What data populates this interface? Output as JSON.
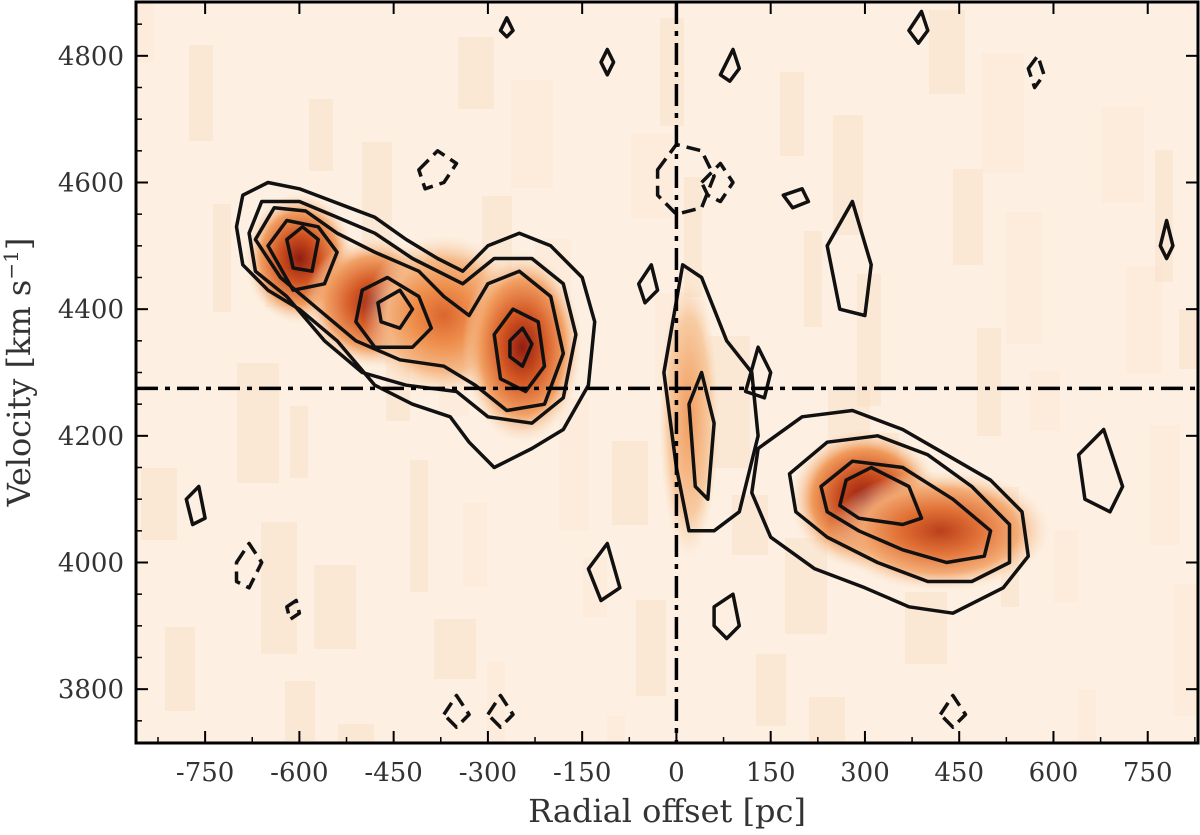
{
  "chart_data": {
    "type": "heatmap",
    "title": "",
    "xlabel": "Radial offset [pc]",
    "ylabel": "Velocity [km s",
    "ylabel_sup": "−1",
    "ylabel_close": "]",
    "xlim": [
      -860,
      830
    ],
    "ylim": [
      3715,
      4885
    ],
    "x_ticks": [
      -750,
      -600,
      -450,
      -300,
      -150,
      0,
      150,
      300,
      450,
      600,
      750
    ],
    "y_ticks": [
      3800,
      4000,
      4200,
      4400,
      4600,
      4800
    ],
    "reference_lines": {
      "x": 0,
      "y": 4275,
      "style": "dash-dot"
    },
    "colormap": [
      "#fdf3e9",
      "#f7c79a",
      "#ee8a45",
      "#cf4a16",
      "#8c1206"
    ],
    "emission_peaks": [
      {
        "x": -600,
        "y": 4480,
        "intensity": 0.92,
        "sx": 55,
        "sy": 65
      },
      {
        "x": -480,
        "y": 4410,
        "intensity": 0.85,
        "sx": 70,
        "sy": 65
      },
      {
        "x": -370,
        "y": 4390,
        "intensity": 0.55,
        "sx": 80,
        "sy": 80
      },
      {
        "x": -245,
        "y": 4340,
        "intensity": 0.88,
        "sx": 60,
        "sy": 95
      },
      {
        "x": 20,
        "y": 4230,
        "intensity": 0.32,
        "sx": 30,
        "sy": 140
      },
      {
        "x": 300,
        "y": 4100,
        "intensity": 0.95,
        "sx": 75,
        "sy": 70
      },
      {
        "x": 420,
        "y": 4050,
        "intensity": 0.72,
        "sx": 110,
        "sy": 60
      }
    ],
    "contours": {
      "positive": [
        [
          [
            -700,
            4530
          ],
          [
            -690,
            4580
          ],
          [
            -650,
            4600
          ],
          [
            -600,
            4590
          ],
          [
            -560,
            4575
          ],
          [
            -520,
            4560
          ],
          [
            -480,
            4545
          ],
          [
            -430,
            4510
          ],
          [
            -380,
            4480
          ],
          [
            -340,
            4460
          ],
          [
            -300,
            4500
          ],
          [
            -250,
            4520
          ],
          [
            -200,
            4500
          ],
          [
            -150,
            4450
          ],
          [
            -130,
            4380
          ],
          [
            -140,
            4280
          ],
          [
            -180,
            4210
          ],
          [
            -230,
            4180
          ],
          [
            -290,
            4150
          ],
          [
            -330,
            4190
          ],
          [
            -360,
            4230
          ],
          [
            -420,
            4250
          ],
          [
            -480,
            4280
          ],
          [
            -540,
            4350
          ],
          [
            -600,
            4400
          ],
          [
            -650,
            4430
          ],
          [
            -690,
            4470
          ]
        ],
        [
          [
            -680,
            4520
          ],
          [
            -660,
            4570
          ],
          [
            -600,
            4570
          ],
          [
            -540,
            4545
          ],
          [
            -480,
            4520
          ],
          [
            -420,
            4480
          ],
          [
            -340,
            4440
          ],
          [
            -290,
            4480
          ],
          [
            -230,
            4480
          ],
          [
            -180,
            4440
          ],
          [
            -160,
            4360
          ],
          [
            -180,
            4260
          ],
          [
            -230,
            4220
          ],
          [
            -300,
            4230
          ],
          [
            -350,
            4270
          ],
          [
            -430,
            4280
          ],
          [
            -500,
            4300
          ],
          [
            -560,
            4350
          ],
          [
            -620,
            4420
          ],
          [
            -670,
            4460
          ]
        ],
        [
          [
            -670,
            4510
          ],
          [
            -640,
            4560
          ],
          [
            -590,
            4555
          ],
          [
            -540,
            4520
          ],
          [
            -480,
            4490
          ],
          [
            -410,
            4460
          ],
          [
            -370,
            4420
          ],
          [
            -330,
            4390
          ],
          [
            -300,
            4440
          ],
          [
            -250,
            4460
          ],
          [
            -200,
            4420
          ],
          [
            -180,
            4330
          ],
          [
            -210,
            4250
          ],
          [
            -270,
            4240
          ],
          [
            -320,
            4280
          ],
          [
            -370,
            4310
          ],
          [
            -440,
            4320
          ],
          [
            -510,
            4350
          ],
          [
            -570,
            4400
          ],
          [
            -630,
            4450
          ]
        ],
        [
          [
            -650,
            4500
          ],
          [
            -620,
            4540
          ],
          [
            -570,
            4530
          ],
          [
            -540,
            4490
          ],
          [
            -560,
            4440
          ],
          [
            -610,
            4430
          ]
        ],
        [
          [
            -500,
            4430
          ],
          [
            -460,
            4450
          ],
          [
            -410,
            4420
          ],
          [
            -390,
            4370
          ],
          [
            -420,
            4340
          ],
          [
            -480,
            4340
          ],
          [
            -510,
            4380
          ]
        ],
        [
          [
            -290,
            4360
          ],
          [
            -260,
            4400
          ],
          [
            -220,
            4380
          ],
          [
            -210,
            4310
          ],
          [
            -240,
            4270
          ],
          [
            -280,
            4290
          ]
        ],
        [
          [
            -620,
            4510
          ],
          [
            -595,
            4530
          ],
          [
            -570,
            4510
          ],
          [
            -580,
            4460
          ],
          [
            -610,
            4465
          ]
        ],
        [
          [
            -475,
            4410
          ],
          [
            -440,
            4430
          ],
          [
            -420,
            4400
          ],
          [
            -440,
            4370
          ],
          [
            -470,
            4380
          ]
        ],
        [
          [
            -265,
            4350
          ],
          [
            -245,
            4370
          ],
          [
            -230,
            4345
          ],
          [
            -245,
            4310
          ],
          [
            -265,
            4325
          ]
        ],
        [
          [
            -20,
            4300
          ],
          [
            10,
            4470
          ],
          [
            40,
            4450
          ],
          [
            80,
            4350
          ],
          [
            120,
            4300
          ],
          [
            130,
            4200
          ],
          [
            100,
            4080
          ],
          [
            60,
            4050
          ],
          [
            20,
            4050
          ],
          [
            0,
            4150
          ]
        ],
        [
          [
            20,
            4250
          ],
          [
            40,
            4300
          ],
          [
            60,
            4220
          ],
          [
            50,
            4100
          ],
          [
            30,
            4120
          ]
        ],
        [
          [
            130,
            4180
          ],
          [
            200,
            4230
          ],
          [
            280,
            4240
          ],
          [
            360,
            4210
          ],
          [
            430,
            4170
          ],
          [
            500,
            4130
          ],
          [
            550,
            4080
          ],
          [
            560,
            4010
          ],
          [
            520,
            3960
          ],
          [
            440,
            3920
          ],
          [
            370,
            3930
          ],
          [
            300,
            3960
          ],
          [
            220,
            3990
          ],
          [
            150,
            4040
          ],
          [
            120,
            4110
          ]
        ],
        [
          [
            180,
            4140
          ],
          [
            240,
            4190
          ],
          [
            320,
            4200
          ],
          [
            400,
            4170
          ],
          [
            470,
            4120
          ],
          [
            530,
            4060
          ],
          [
            530,
            4000
          ],
          [
            470,
            3970
          ],
          [
            400,
            3970
          ],
          [
            320,
            4000
          ],
          [
            240,
            4040
          ],
          [
            190,
            4080
          ]
        ],
        [
          [
            230,
            4120
          ],
          [
            280,
            4160
          ],
          [
            360,
            4150
          ],
          [
            440,
            4100
          ],
          [
            500,
            4050
          ],
          [
            490,
            4010
          ],
          [
            430,
            4000
          ],
          [
            360,
            4020
          ],
          [
            290,
            4050
          ],
          [
            240,
            4080
          ]
        ],
        [
          [
            270,
            4130
          ],
          [
            310,
            4150
          ],
          [
            370,
            4120
          ],
          [
            390,
            4070
          ],
          [
            360,
            4060
          ],
          [
            290,
            4070
          ],
          [
            260,
            4090
          ]
        ],
        [
          [
            -780,
            4100
          ],
          [
            -760,
            4120
          ],
          [
            -750,
            4070
          ],
          [
            -770,
            4060
          ]
        ],
        [
          [
            -140,
            3990
          ],
          [
            -110,
            4030
          ],
          [
            -90,
            3960
          ],
          [
            -120,
            3940
          ]
        ],
        [
          [
            640,
            4170
          ],
          [
            680,
            4210
          ],
          [
            710,
            4120
          ],
          [
            690,
            4080
          ],
          [
            650,
            4100
          ]
        ],
        [
          [
            240,
            4500
          ],
          [
            280,
            4570
          ],
          [
            310,
            4470
          ],
          [
            300,
            4390
          ],
          [
            260,
            4400
          ]
        ],
        [
          [
            770,
            4500
          ],
          [
            780,
            4540
          ],
          [
            790,
            4500
          ],
          [
            780,
            4480
          ]
        ],
        [
          [
            60,
            3930
          ],
          [
            90,
            3950
          ],
          [
            100,
            3900
          ],
          [
            80,
            3880
          ],
          [
            60,
            3900
          ]
        ],
        [
          [
            -60,
            4440
          ],
          [
            -40,
            4470
          ],
          [
            -30,
            4430
          ],
          [
            -50,
            4410
          ]
        ],
        [
          [
            -120,
            4790
          ],
          [
            -110,
            4810
          ],
          [
            -100,
            4790
          ],
          [
            -110,
            4770
          ]
        ],
        [
          [
            170,
            4580
          ],
          [
            200,
            4590
          ],
          [
            210,
            4570
          ],
          [
            185,
            4560
          ]
        ],
        [
          [
            70,
            4770
          ],
          [
            90,
            4810
          ],
          [
            100,
            4780
          ],
          [
            85,
            4760
          ]
        ],
        [
          [
            110,
            4270
          ],
          [
            130,
            4340
          ],
          [
            150,
            4300
          ],
          [
            140,
            4260
          ]
        ],
        [
          [
            -280,
            4840
          ],
          [
            -270,
            4860
          ],
          [
            -260,
            4840
          ],
          [
            -270,
            4830
          ]
        ],
        [
          [
            370,
            4840
          ],
          [
            390,
            4870
          ],
          [
            400,
            4840
          ],
          [
            385,
            4820
          ]
        ]
      ],
      "negative": [
        [
          [
            -30,
            4620
          ],
          [
            0,
            4660
          ],
          [
            40,
            4650
          ],
          [
            60,
            4610
          ],
          [
            40,
            4560
          ],
          [
            0,
            4550
          ],
          [
            -30,
            4580
          ]
        ],
        [
          [
            40,
            4600
          ],
          [
            70,
            4630
          ],
          [
            90,
            4600
          ],
          [
            70,
            4570
          ],
          [
            50,
            4580
          ]
        ],
        [
          [
            -410,
            4620
          ],
          [
            -380,
            4650
          ],
          [
            -350,
            4630
          ],
          [
            -370,
            4600
          ],
          [
            -400,
            4590
          ]
        ],
        [
          [
            -700,
            4000
          ],
          [
            -680,
            4030
          ],
          [
            -660,
            4000
          ],
          [
            -680,
            3960
          ],
          [
            -700,
            3970
          ]
        ],
        [
          [
            -370,
            3760
          ],
          [
            -350,
            3790
          ],
          [
            -330,
            3760
          ],
          [
            -350,
            3740
          ]
        ],
        [
          [
            -300,
            3760
          ],
          [
            -280,
            3790
          ],
          [
            -260,
            3760
          ],
          [
            -280,
            3740
          ]
        ],
        [
          [
            420,
            3760
          ],
          [
            440,
            3790
          ],
          [
            460,
            3760
          ],
          [
            440,
            3740
          ]
        ],
        [
          [
            560,
            4780
          ],
          [
            575,
            4800
          ],
          [
            585,
            4770
          ],
          [
            570,
            4750
          ]
        ],
        [
          [
            -620,
            3930
          ],
          [
            -605,
            3940
          ],
          [
            -600,
            3920
          ],
          [
            -615,
            3910
          ]
        ]
      ]
    }
  }
}
